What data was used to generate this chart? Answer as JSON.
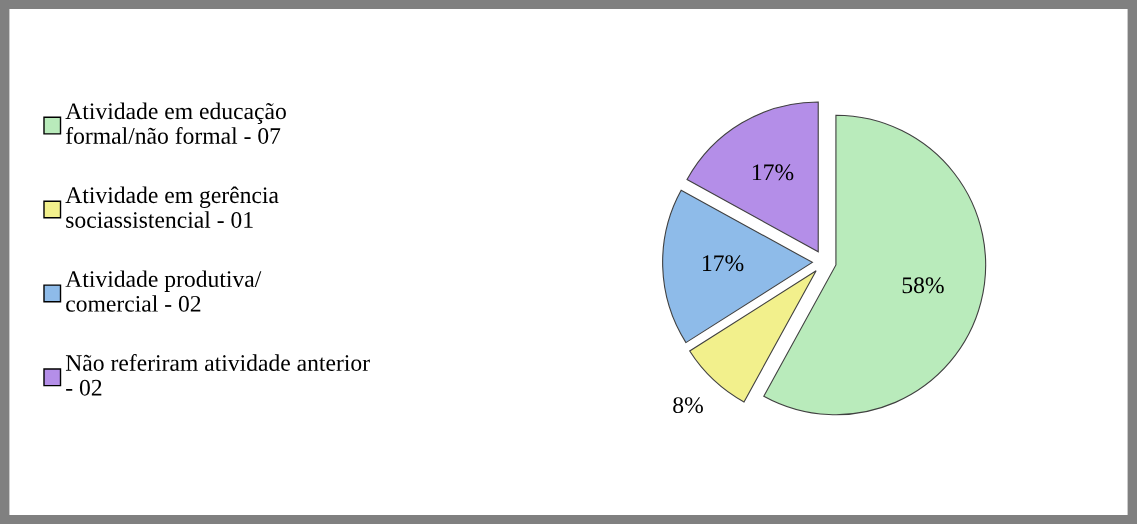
{
  "chart_data": {
    "type": "pie",
    "categories": [
      "Atividade em educação\nformal/não formal - 07",
      "Atividade em gerência\nsociassistencial - 01",
      "Atividade produtiva/\ncomercial - 02",
      "Não referiram atividade anterior\n- 02"
    ],
    "values": [
      58,
      8,
      17,
      17
    ],
    "colors": [
      "#b9ebbb",
      "#f2f08c",
      "#8ebbe9",
      "#b48ee8"
    ],
    "value_labels": [
      "58%",
      "8%",
      "17%",
      "17%"
    ],
    "legend": "left"
  }
}
